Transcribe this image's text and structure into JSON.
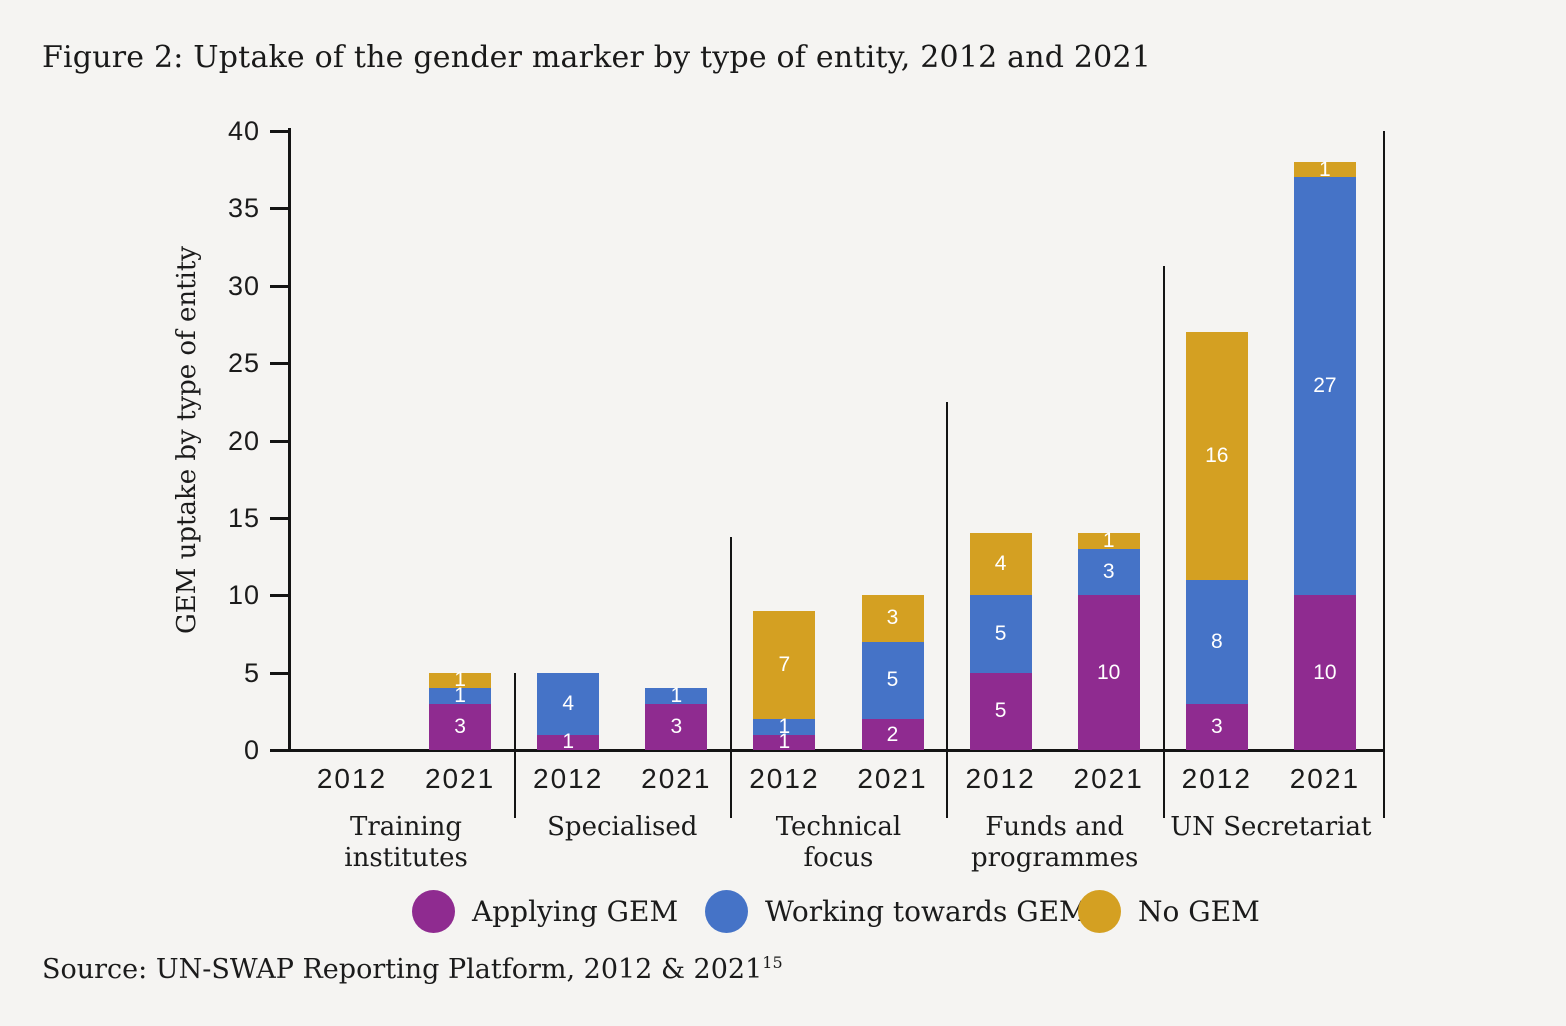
{
  "figure": {
    "title": "Figure 2: Uptake of the gender marker by type of entity, 2012 and 2021",
    "source": {
      "text": "Source: UN-SWAP Reporting Platform, 2012 & 2021",
      "superscript": "15"
    }
  },
  "chart_data": {
    "type": "bar",
    "stacked": true,
    "title": "Figure 2: Uptake of the gender marker by type of entity, 2012 and 2021",
    "xlabel": "",
    "ylabel": "GEM uptake by type of entity",
    "ylim": [
      0,
      40
    ],
    "yticks": [
      0,
      5,
      10,
      15,
      20,
      25,
      30,
      35,
      40
    ],
    "grid": false,
    "legend_position": "bottom",
    "series": [
      {
        "name": "Applying GEM",
        "color": "#8F2B90"
      },
      {
        "name": "Working towards GEM",
        "color": "#4573C7"
      },
      {
        "name": "No GEM",
        "color": "#D4A022"
      }
    ],
    "groups": [
      {
        "label": "Training institutes",
        "label_lines": [
          "Training",
          "institutes"
        ],
        "bars": [
          {
            "year": "2012",
            "values": [
              0,
              0,
              0
            ]
          },
          {
            "year": "2021",
            "values": [
              3,
              1,
              1
            ]
          }
        ]
      },
      {
        "label": "Specialised",
        "label_lines": [
          "Specialised"
        ],
        "bars": [
          {
            "year": "2012",
            "values": [
              1,
              4,
              0
            ]
          },
          {
            "year": "2021",
            "values": [
              3,
              1,
              0
            ]
          }
        ]
      },
      {
        "label": "Technical focus",
        "label_lines": [
          "Technical",
          "focus"
        ],
        "bars": [
          {
            "year": "2012",
            "values": [
              1,
              1,
              7
            ]
          },
          {
            "year": "2021",
            "values": [
              2,
              5,
              3
            ]
          }
        ]
      },
      {
        "label": "Funds and programmes",
        "label_lines": [
          "Funds and",
          "programmes"
        ],
        "bars": [
          {
            "year": "2012",
            "values": [
              5,
              5,
              4
            ]
          },
          {
            "year": "2021",
            "values": [
              10,
              3,
              1
            ]
          }
        ]
      },
      {
        "label": "UN Secretariat",
        "label_lines": [
          "UN Secretariat"
        ],
        "bars": [
          {
            "year": "2012",
            "values": [
              3,
              8,
              16
            ]
          },
          {
            "year": "2021",
            "values": [
              10,
              27,
              1
            ]
          }
        ]
      }
    ],
    "separator_tops_units": [
      5,
      13.75,
      22.5,
      31.25,
      40
    ]
  }
}
